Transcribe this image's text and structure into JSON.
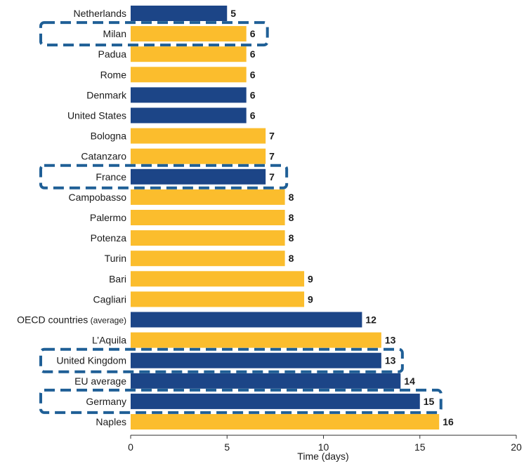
{
  "chart_data": {
    "type": "bar",
    "orientation": "horizontal",
    "categories": [
      {
        "label": "Netherlands",
        "suffix": "",
        "value": 5,
        "group": "country",
        "highlighted": false
      },
      {
        "label": "Milan",
        "suffix": "",
        "value": 6,
        "group": "italian-city",
        "highlighted": true
      },
      {
        "label": "Padua",
        "suffix": "",
        "value": 6,
        "group": "italian-city",
        "highlighted": false
      },
      {
        "label": "Rome",
        "suffix": "",
        "value": 6,
        "group": "italian-city",
        "highlighted": false
      },
      {
        "label": "Denmark",
        "suffix": "",
        "value": 6,
        "group": "country",
        "highlighted": false
      },
      {
        "label": "United States",
        "suffix": "",
        "value": 6,
        "group": "country",
        "highlighted": false
      },
      {
        "label": "Bologna",
        "suffix": "",
        "value": 7,
        "group": "italian-city",
        "highlighted": false
      },
      {
        "label": "Catanzaro",
        "suffix": "",
        "value": 7,
        "group": "italian-city",
        "highlighted": false
      },
      {
        "label": "France",
        "suffix": "",
        "value": 7,
        "group": "country",
        "highlighted": true
      },
      {
        "label": "Campobasso",
        "suffix": "",
        "value": 8,
        "group": "italian-city",
        "highlighted": false
      },
      {
        "label": "Palermo",
        "suffix": "",
        "value": 8,
        "group": "italian-city",
        "highlighted": false
      },
      {
        "label": "Potenza",
        "suffix": "",
        "value": 8,
        "group": "italian-city",
        "highlighted": false
      },
      {
        "label": "Turin",
        "suffix": "",
        "value": 8,
        "group": "italian-city",
        "highlighted": false
      },
      {
        "label": "Bari",
        "suffix": "",
        "value": 9,
        "group": "italian-city",
        "highlighted": false
      },
      {
        "label": "Cagliari",
        "suffix": "",
        "value": 9,
        "group": "italian-city",
        "highlighted": false
      },
      {
        "label": "OECD countries",
        "suffix": "(average)",
        "value": 12,
        "group": "country",
        "highlighted": false
      },
      {
        "label": "L’Aquila",
        "suffix": "",
        "value": 13,
        "group": "italian-city",
        "highlighted": false
      },
      {
        "label": "United Kingdom",
        "suffix": "",
        "value": 13,
        "group": "country",
        "highlighted": true
      },
      {
        "label": "EU average",
        "suffix": "",
        "value": 14,
        "group": "country",
        "highlighted": false
      },
      {
        "label": "Germany",
        "suffix": "",
        "value": 15,
        "group": "country",
        "highlighted": true
      },
      {
        "label": "Naples",
        "suffix": "",
        "value": 16,
        "group": "italian-city",
        "highlighted": false
      }
    ],
    "xlabel": "Time (days)",
    "xlim": [
      0,
      20
    ],
    "xticks": [
      0,
      5,
      10,
      15,
      20
    ],
    "grid": false,
    "colors": {
      "country": "#1c4587",
      "italian-city": "#fbbd2d",
      "highlight_box": "#1f5f96"
    }
  }
}
